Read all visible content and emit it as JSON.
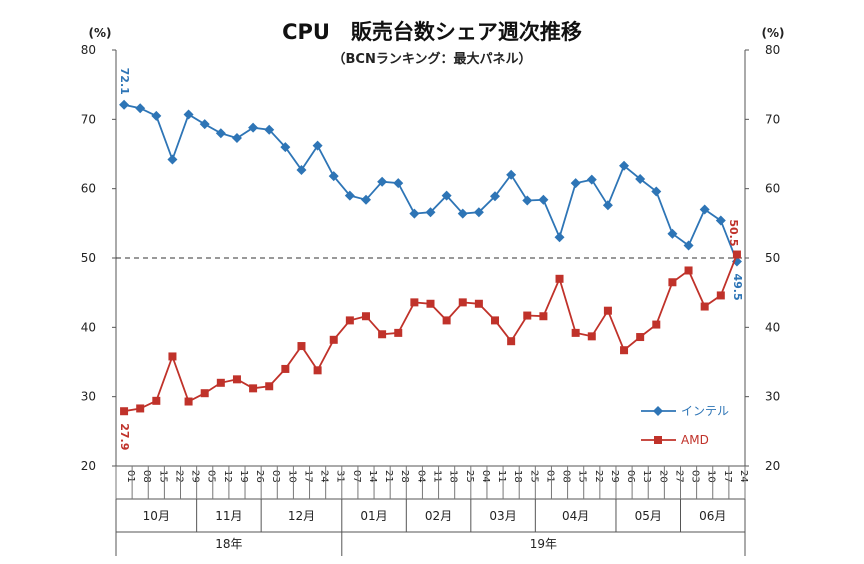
{
  "chart_data": {
    "type": "line",
    "title": "CPU　販売台数シェア週次推移",
    "subtitle": "（BCNランキング：最大パネル）",
    "y_unit_left": "(%)",
    "y_unit_right": "(%)",
    "ylim": [
      20,
      80
    ],
    "yticks": [
      "20",
      "30",
      "40",
      "50",
      "60",
      "70",
      "80"
    ],
    "reference_line": 50,
    "x": [
      "01",
      "08",
      "15",
      "22",
      "29",
      "05",
      "12",
      "19",
      "26",
      "03",
      "10",
      "17",
      "24",
      "31",
      "07",
      "14",
      "21",
      "28",
      "04",
      "11",
      "18",
      "25",
      "04",
      "11",
      "18",
      "25",
      "01",
      "08",
      "15",
      "22",
      "29",
      "06",
      "13",
      "20",
      "27",
      "03",
      "10",
      "17",
      "24"
    ],
    "months": [
      {
        "label": "10月",
        "start": 0,
        "end": 5
      },
      {
        "label": "11月",
        "start": 5,
        "end": 9
      },
      {
        "label": "12月",
        "start": 9,
        "end": 14
      },
      {
        "label": "01月",
        "start": 14,
        "end": 18
      },
      {
        "label": "02月",
        "start": 18,
        "end": 22
      },
      {
        "label": "03月",
        "start": 22,
        "end": 26
      },
      {
        "label": "04月",
        "start": 26,
        "end": 31
      },
      {
        "label": "05月",
        "start": 31,
        "end": 35
      },
      {
        "label": "06月",
        "start": 35,
        "end": 39
      }
    ],
    "years": [
      {
        "label": "18年",
        "start": 0,
        "end": 14
      },
      {
        "label": "19年",
        "start": 14,
        "end": 39
      }
    ],
    "series": [
      {
        "name": "インテル",
        "color": "#2e75b6",
        "marker": "diamond",
        "values": [
          72.1,
          71.6,
          70.5,
          64.2,
          70.7,
          69.3,
          68.0,
          67.3,
          68.8,
          68.5,
          66.0,
          62.7,
          66.2,
          61.8,
          59.0,
          58.4,
          61.0,
          60.8,
          56.4,
          56.6,
          59.0,
          56.4,
          56.6,
          58.9,
          62.0,
          58.3,
          58.4,
          53.0,
          60.8,
          61.3,
          57.6,
          63.3,
          61.4,
          59.6,
          53.5,
          51.8,
          57.0,
          55.4,
          49.5
        ]
      },
      {
        "name": "AMD",
        "color": "#c0322a",
        "marker": "square",
        "values": [
          27.9,
          28.3,
          29.4,
          35.8,
          29.3,
          30.5,
          32.0,
          32.5,
          31.2,
          31.5,
          34.0,
          37.3,
          33.8,
          38.2,
          41.0,
          41.6,
          39.0,
          39.2,
          43.6,
          43.4,
          41.0,
          43.6,
          43.4,
          41.0,
          38.0,
          41.7,
          41.6,
          47.0,
          39.2,
          38.7,
          42.4,
          36.7,
          38.6,
          40.4,
          46.5,
          48.2,
          43.0,
          44.6,
          50.5
        ]
      }
    ],
    "data_labels": [
      {
        "series": 0,
        "index": 0,
        "text": "72.1"
      },
      {
        "series": 1,
        "index": 0,
        "text": "27.9"
      },
      {
        "series": 1,
        "index": 38,
        "text": "50.5"
      },
      {
        "series": 0,
        "index": 38,
        "text": "49.5"
      }
    ],
    "legend": "right-middle"
  }
}
